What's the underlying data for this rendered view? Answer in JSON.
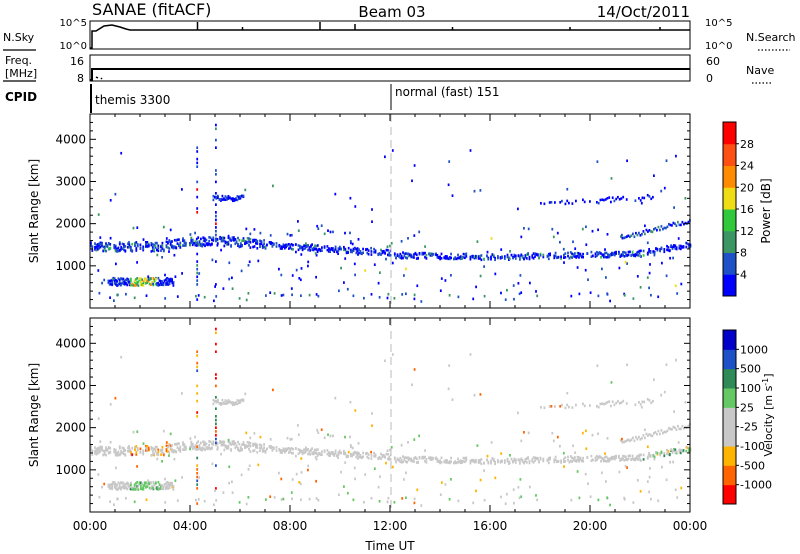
{
  "header": {
    "station": "SANAE (fitACF)",
    "beam": "Beam 03",
    "date": "14/Oct/2011"
  },
  "nsky_panel": {
    "label_left": "N.Sky",
    "label_right": "N.Search",
    "ticks_left": [
      "10^5",
      "10^0"
    ],
    "ticks_right": [
      "10^5",
      "10^0"
    ]
  },
  "freq_panel": {
    "label_left_line1": "Freq.",
    "label_left_line2": "[MHz]",
    "label_right": "Nave",
    "ticks_left": [
      "16",
      "8"
    ],
    "ticks_right": [
      "60",
      "0"
    ]
  },
  "cpid": {
    "label": "CPID",
    "mode1": "themis 3300",
    "mode2": "normal (fast) 151"
  },
  "chart_data": [
    {
      "type": "heatmap",
      "title": "",
      "quantity": "Power",
      "ylabel": "Slant Range [km]",
      "xlabel": "",
      "xlim": [
        0,
        24
      ],
      "ylim": [
        0,
        4600
      ],
      "yticks": [
        "1000",
        "2000",
        "3000",
        "4000"
      ],
      "colorbar": {
        "label": "Power [dB]",
        "ticks": [
          "4",
          "8",
          "12",
          "16",
          "20",
          "24",
          "28"
        ],
        "colors": [
          "#0000ff",
          "#1e50c8",
          "#3c9664",
          "#32c83c",
          "#f0dc14",
          "#ff8c00",
          "#ff5014",
          "#ff0000"
        ]
      }
    },
    {
      "type": "heatmap",
      "title": "",
      "quantity": "Velocity",
      "ylabel": "Slant Range [km]",
      "xlabel": "Time UT",
      "xlim": [
        0,
        24
      ],
      "ylim": [
        0,
        4600
      ],
      "yticks": [
        "1000",
        "2000",
        "3000",
        "4000"
      ],
      "xticks": [
        "00:00",
        "04:00",
        "08:00",
        "12:00",
        "16:00",
        "20:00",
        "00:00"
      ],
      "colorbar": {
        "label": "Velocity [m s^-1]",
        "ticks": [
          "-1000",
          "-500",
          "-100",
          "-25",
          "25",
          "100",
          "500",
          "1000"
        ],
        "colors": [
          "#ff0000",
          "#ff6400",
          "#ffb400",
          "#c8c8c8",
          "#c8c8c8",
          "#64c864",
          "#2e8b57",
          "#1e50c8",
          "#0000c8"
        ]
      }
    }
  ],
  "colors": {
    "background": "#ffffff",
    "axis": "#000000",
    "mode_divider": "#bbbbbb"
  }
}
